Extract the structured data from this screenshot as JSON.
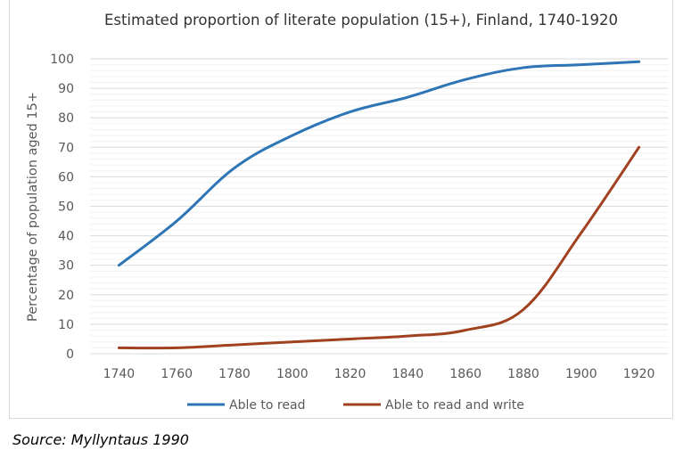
{
  "chart_data": {
    "type": "line",
    "title": "Estimated proportion of literate population (15+), Finland, 1740-1920",
    "xlabel": "",
    "ylabel": "Percentage of population aged 15+",
    "categories": [
      "1740",
      "1760",
      "1780",
      "1800",
      "1820",
      "1840",
      "1860",
      "1880",
      "1900",
      "1920"
    ],
    "ylim": [
      0,
      100
    ],
    "yticks": [
      0,
      10,
      20,
      30,
      40,
      50,
      60,
      70,
      80,
      90,
      100
    ],
    "grid": true,
    "legend": "bottom-center",
    "series": [
      {
        "name": "Able to read",
        "color": "#2e75b6",
        "values": [
          30,
          45,
          63,
          74,
          82,
          87,
          93,
          97,
          98,
          99
        ]
      },
      {
        "name": "Able to read and write",
        "color": "#a0411f",
        "values": [
          2,
          2,
          3,
          4,
          5,
          6,
          8,
          15,
          41,
          70
        ]
      }
    ]
  },
  "source_prefix": "Source:",
  "source_text": " Myllyntaus 1990"
}
